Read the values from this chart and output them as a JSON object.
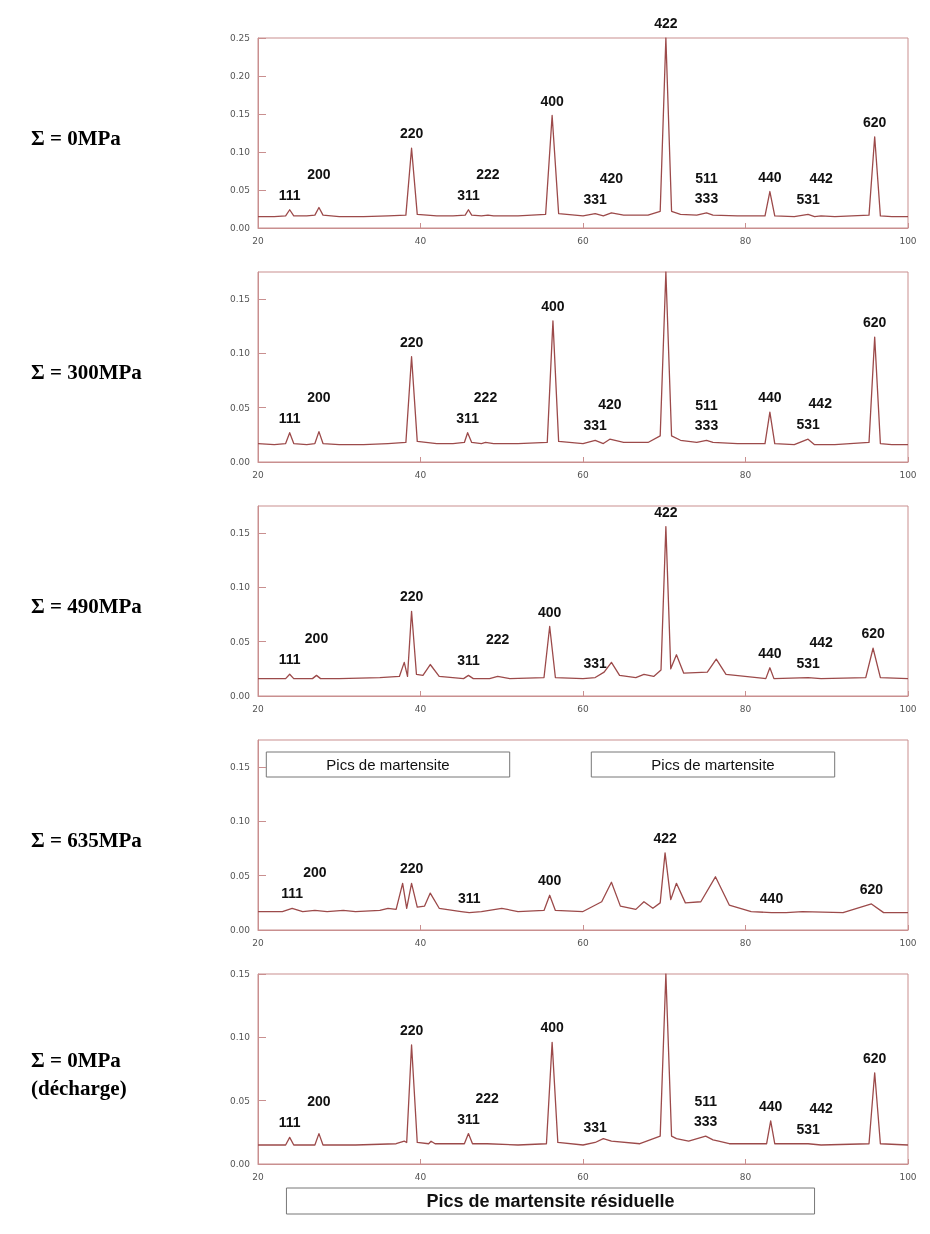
{
  "chart_data": [
    {
      "type": "line",
      "title": "Σ = 0MPa",
      "xlim": [
        20,
        100
      ],
      "xticks": [
        20,
        40,
        60,
        80,
        100
      ],
      "ylim": [
        0,
        0.25
      ],
      "yticks": [
        {
          "value": 0,
          "label": "0.00"
        },
        {
          "value": 0.05,
          "label": "0.05"
        },
        {
          "value": 0.1,
          "label": "0.10"
        },
        {
          "value": 0.15,
          "label": "0.15"
        },
        {
          "value": 0.2,
          "label": "0.20"
        },
        {
          "value": 0.25,
          "label": "0.25"
        }
      ],
      "series": [
        {
          "color": "#9c4a4a",
          "x": [
            20,
            22,
            23.4,
            23.9,
            24.4,
            26,
            27,
            27.5,
            28,
            30,
            33,
            36,
            38.2,
            38.9,
            39.6,
            42,
            44,
            45.5,
            45.9,
            46.3,
            47.5,
            48.3,
            49,
            52,
            55.4,
            56.2,
            57,
            60,
            61.5,
            62.5,
            63.5,
            65,
            68,
            69.5,
            70.2,
            70.9,
            72,
            74,
            75.2,
            76,
            79,
            82.4,
            83,
            83.6,
            86,
            87.7,
            88.5,
            89.3,
            91,
            95.2,
            95.9,
            96.6,
            98,
            100
          ],
          "values": [
            0.015,
            0.015,
            0.016,
            0.024,
            0.016,
            0.016,
            0.017,
            0.027,
            0.017,
            0.015,
            0.015,
            0.016,
            0.017,
            0.105,
            0.018,
            0.016,
            0.016,
            0.017,
            0.024,
            0.017,
            0.016,
            0.017,
            0.016,
            0.016,
            0.018,
            0.148,
            0.019,
            0.016,
            0.019,
            0.016,
            0.02,
            0.017,
            0.017,
            0.022,
            0.25,
            0.022,
            0.018,
            0.017,
            0.02,
            0.017,
            0.016,
            0.016,
            0.048,
            0.016,
            0.015,
            0.018,
            0.015,
            0.016,
            0.015,
            0.017,
            0.12,
            0.016,
            0.015,
            0.015
          ]
        }
      ],
      "annotations": [
        {
          "text": "111",
          "x": 23.9,
          "y": 0.024
        },
        {
          "text": "200",
          "x": 27.5,
          "y": 0.027
        },
        {
          "text": "220",
          "x": 38.9,
          "y": 0.105
        },
        {
          "text": "311",
          "x": 45.9,
          "y": 0.024
        },
        {
          "text": "222",
          "x": 48.3,
          "y": 0.017
        },
        {
          "text": "400",
          "x": 56.2,
          "y": 0.148
        },
        {
          "text": "331",
          "x": 61.5,
          "y": 0.019
        },
        {
          "text": "420",
          "x": 63.5,
          "y": 0.02
        },
        {
          "text": "422",
          "x": 70.2,
          "y": 0.25
        },
        {
          "text": "511\n333",
          "x": 75.2,
          "y": 0.02
        },
        {
          "text": "440",
          "x": 83,
          "y": 0.048
        },
        {
          "text": "531",
          "x": 87.7,
          "y": 0.018
        },
        {
          "text": "442",
          "x": 89.3,
          "y": 0.016
        },
        {
          "text": "620",
          "x": 95.9,
          "y": 0.12
        }
      ]
    },
    {
      "type": "line",
      "title": "Σ = 300MPa",
      "xlim": [
        20,
        100
      ],
      "xticks": [
        20,
        40,
        60,
        80,
        100
      ],
      "ylim": [
        0,
        0.175
      ],
      "yticks": [
        {
          "value": 0,
          "label": "0.00"
        },
        {
          "value": 0.05,
          "label": "0.05"
        },
        {
          "value": 0.1,
          "label": "0.10"
        },
        {
          "value": 0.15,
          "label": "0.15"
        }
      ],
      "series": [
        {
          "color": "#9c4a4a",
          "x": [
            20,
            22,
            23.4,
            23.9,
            24.4,
            26,
            27,
            27.5,
            28,
            30,
            33,
            36,
            38.2,
            38.9,
            39.6,
            42,
            44,
            45.4,
            45.8,
            46.3,
            47.5,
            48,
            49,
            52,
            55.6,
            56.3,
            57,
            60,
            61.5,
            62.5,
            63.3,
            65,
            68,
            69.5,
            70.2,
            70.9,
            72,
            74,
            75.2,
            76,
            79,
            82.4,
            83,
            83.6,
            86,
            87.7,
            88.5,
            89.2,
            91,
            95.2,
            95.9,
            96.6,
            98,
            100
          ],
          "values": [
            0.017,
            0.016,
            0.017,
            0.027,
            0.017,
            0.016,
            0.017,
            0.028,
            0.017,
            0.016,
            0.016,
            0.017,
            0.018,
            0.097,
            0.019,
            0.017,
            0.017,
            0.018,
            0.027,
            0.018,
            0.017,
            0.018,
            0.017,
            0.017,
            0.018,
            0.13,
            0.019,
            0.017,
            0.02,
            0.017,
            0.021,
            0.018,
            0.018,
            0.024,
            0.175,
            0.024,
            0.02,
            0.018,
            0.02,
            0.018,
            0.017,
            0.017,
            0.046,
            0.017,
            0.016,
            0.021,
            0.016,
            0.016,
            0.016,
            0.018,
            0.115,
            0.017,
            0.016,
            0.016
          ]
        }
      ],
      "annotations": [
        {
          "text": "111",
          "x": 23.9,
          "y": 0.027
        },
        {
          "text": "200",
          "x": 27.5,
          "y": 0.028
        },
        {
          "text": "220",
          "x": 38.9,
          "y": 0.097
        },
        {
          "text": "311",
          "x": 45.8,
          "y": 0.027
        },
        {
          "text": "222",
          "x": 48,
          "y": 0.018
        },
        {
          "text": "400",
          "x": 56.3,
          "y": 0.13
        },
        {
          "text": "331",
          "x": 61.5,
          "y": 0.02
        },
        {
          "text": "420",
          "x": 63.3,
          "y": 0.021
        },
        {
          "text": "511\n333",
          "x": 75.2,
          "y": 0.02
        },
        {
          "text": "440",
          "x": 83,
          "y": 0.046
        },
        {
          "text": "531",
          "x": 87.7,
          "y": 0.021
        },
        {
          "text": "442",
          "x": 89.2,
          "y": 0.016
        },
        {
          "text": "620",
          "x": 95.9,
          "y": 0.115
        }
      ]
    },
    {
      "type": "line",
      "title": "Σ = 490MPa",
      "xlim": [
        20,
        100
      ],
      "xticks": [
        20,
        40,
        60,
        80,
        100
      ],
      "ylim": [
        0,
        0.175
      ],
      "yticks": [
        {
          "value": 0,
          "label": "0.00"
        },
        {
          "value": 0.05,
          "label": "0.05"
        },
        {
          "value": 0.1,
          "label": "0.10"
        },
        {
          "value": 0.15,
          "label": "0.15"
        }
      ],
      "series": [
        {
          "color": "#9c4a4a",
          "x": [
            20,
            23.4,
            23.9,
            24.4,
            26.7,
            27.2,
            27.7,
            30,
            35,
            37.4,
            38,
            38.4,
            38.9,
            39.5,
            40.3,
            41.2,
            42.3,
            45.3,
            45.9,
            46.5,
            48.5,
            49.5,
            51,
            55.2,
            55.9,
            56.6,
            60,
            61.5,
            62.6,
            63.5,
            64.5,
            66.5,
            67.5,
            68.7,
            69.6,
            70.2,
            70.8,
            71.5,
            72.4,
            75.3,
            76.4,
            77.6,
            82.5,
            83,
            83.5,
            87.7,
            89.3,
            94.8,
            95.7,
            96.6,
            100
          ],
          "values": [
            0.016,
            0.016,
            0.02,
            0.016,
            0.016,
            0.019,
            0.016,
            0.016,
            0.017,
            0.018,
            0.031,
            0.018,
            0.078,
            0.02,
            0.019,
            0.029,
            0.018,
            0.016,
            0.019,
            0.016,
            0.016,
            0.018,
            0.016,
            0.017,
            0.064,
            0.017,
            0.016,
            0.017,
            0.022,
            0.031,
            0.019,
            0.017,
            0.02,
            0.018,
            0.024,
            0.156,
            0.025,
            0.038,
            0.021,
            0.022,
            0.034,
            0.02,
            0.016,
            0.026,
            0.016,
            0.017,
            0.016,
            0.017,
            0.044,
            0.017,
            0.016
          ]
        }
      ],
      "annotations": [
        {
          "text": "111",
          "x": 23.9,
          "y": 0.02
        },
        {
          "text": "200",
          "x": 27.2,
          "y": 0.019
        },
        {
          "text": "220",
          "x": 38.9,
          "y": 0.078
        },
        {
          "text": "311",
          "x": 45.9,
          "y": 0.019
        },
        {
          "text": "222",
          "x": 49.5,
          "y": 0.018
        },
        {
          "text": "400",
          "x": 55.9,
          "y": 0.064
        },
        {
          "text": "331",
          "x": 61.5,
          "y": 0.017
        },
        {
          "text": "422",
          "x": 70.2,
          "y": 0.156
        },
        {
          "text": "440",
          "x": 83,
          "y": 0.026
        },
        {
          "text": "531",
          "x": 87.7,
          "y": 0.017
        },
        {
          "text": "442",
          "x": 89.3,
          "y": 0.016
        },
        {
          "text": "620",
          "x": 95.7,
          "y": 0.044
        }
      ]
    },
    {
      "type": "line",
      "title": "Σ = 635MPa",
      "xlim": [
        20,
        100
      ],
      "xticks": [
        20,
        40,
        60,
        80,
        100
      ],
      "ylim": [
        0,
        0.175
      ],
      "yticks": [
        {
          "value": 0,
          "label": "0.00"
        },
        {
          "value": 0.05,
          "label": "0.05"
        },
        {
          "value": 0.1,
          "label": "0.10"
        },
        {
          "value": 0.15,
          "label": "0.15"
        }
      ],
      "series": [
        {
          "color": "#9c4a4a",
          "x": [
            20,
            23,
            24.2,
            25.5,
            27,
            28.5,
            30.5,
            32,
            35,
            36,
            37,
            37.8,
            38.3,
            38.9,
            39.6,
            40.5,
            41.2,
            42.3,
            45,
            46,
            47.5,
            50,
            52,
            55.2,
            55.9,
            56.6,
            60,
            62.3,
            63.5,
            64.6,
            66.5,
            67.5,
            68.6,
            69.5,
            70.1,
            70.8,
            71.5,
            72.6,
            74.5,
            76.3,
            78,
            80.7,
            83.2,
            85,
            87,
            92,
            95.5,
            97,
            100
          ],
          "values": [
            0.017,
            0.017,
            0.02,
            0.017,
            0.018,
            0.017,
            0.018,
            0.017,
            0.018,
            0.02,
            0.019,
            0.043,
            0.02,
            0.043,
            0.021,
            0.022,
            0.034,
            0.02,
            0.017,
            0.016,
            0.017,
            0.02,
            0.017,
            0.018,
            0.032,
            0.018,
            0.017,
            0.026,
            0.044,
            0.022,
            0.019,
            0.026,
            0.02,
            0.025,
            0.071,
            0.028,
            0.043,
            0.025,
            0.026,
            0.049,
            0.023,
            0.017,
            0.016,
            0.016,
            0.017,
            0.016,
            0.024,
            0.016,
            0.016
          ]
        }
      ],
      "annotations": [
        {
          "text": "111",
          "x": 24.2,
          "y": 0.02
        },
        {
          "text": "200",
          "x": 27,
          "y": 0.018
        },
        {
          "text": "220",
          "x": 38.9,
          "y": 0.043
        },
        {
          "text": "311",
          "x": 46,
          "y": 0.016
        },
        {
          "text": "400",
          "x": 55.9,
          "y": 0.032
        },
        {
          "text": "422",
          "x": 70.1,
          "y": 0.071
        },
        {
          "text": "440",
          "x": 83.2,
          "y": 0.016
        },
        {
          "text": "620",
          "x": 95.5,
          "y": 0.024
        },
        "Pics de martensite",
        "Pics de martensite"
      ]
    },
    {
      "type": "line",
      "title": "Σ = 0MPa\n(décharge)",
      "xlim": [
        20,
        100
      ],
      "xticks": [
        20,
        40,
        60,
        80,
        100
      ],
      "ylim": [
        0,
        0.15
      ],
      "yticks": [
        {
          "value": 0,
          "label": "0.00"
        },
        {
          "value": 0.05,
          "label": "0.05"
        },
        {
          "value": 0.1,
          "label": "0.10"
        },
        {
          "value": 0.15,
          "label": "0.15"
        }
      ],
      "series": [
        {
          "color": "#9c4a4a",
          "x": [
            20,
            23.4,
            23.9,
            24.4,
            27,
            27.5,
            28,
            32,
            37,
            38,
            38.3,
            38.9,
            39.6,
            41,
            41.3,
            41.8,
            45.4,
            45.9,
            46.4,
            48.2,
            52,
            55.5,
            56.2,
            56.9,
            60,
            61.5,
            62.5,
            63.5,
            67,
            69.5,
            70.2,
            70.9,
            71.5,
            73,
            75.1,
            76,
            76.7,
            78,
            82.6,
            83.1,
            83.6,
            87.7,
            89.3,
            95.2,
            95.9,
            96.6,
            100
          ],
          "values": [
            0.015,
            0.015,
            0.021,
            0.015,
            0.015,
            0.024,
            0.015,
            0.015,
            0.016,
            0.018,
            0.017,
            0.094,
            0.017,
            0.016,
            0.018,
            0.016,
            0.016,
            0.024,
            0.016,
            0.016,
            0.015,
            0.016,
            0.096,
            0.017,
            0.015,
            0.017,
            0.02,
            0.018,
            0.016,
            0.022,
            0.15,
            0.022,
            0.02,
            0.018,
            0.022,
            0.019,
            0.018,
            0.016,
            0.016,
            0.034,
            0.016,
            0.016,
            0.015,
            0.016,
            0.072,
            0.016,
            0.015
          ]
        }
      ],
      "annotations": [
        {
          "text": "111",
          "x": 23.9,
          "y": 0.021
        },
        {
          "text": "200",
          "x": 27.5,
          "y": 0.024
        },
        {
          "text": "220",
          "x": 38.9,
          "y": 0.094
        },
        {
          "text": "311",
          "x": 45.9,
          "y": 0.024
        },
        {
          "text": "222",
          "x": 48.2,
          "y": 0.016
        },
        {
          "text": "400",
          "x": 56.2,
          "y": 0.096
        },
        {
          "text": "331",
          "x": 61.5,
          "y": 0.017
        },
        {
          "text": "511\n333",
          "x": 75.1,
          "y": 0.022
        },
        {
          "text": "440",
          "x": 83.1,
          "y": 0.034
        },
        {
          "text": "531",
          "x": 87.7,
          "y": 0.016
        },
        {
          "text": "442",
          "x": 89.3,
          "y": 0.015
        },
        {
          "text": "620",
          "x": 95.9,
          "y": 0.072
        },
        "Pics de martensite résiduelle"
      ]
    }
  ]
}
